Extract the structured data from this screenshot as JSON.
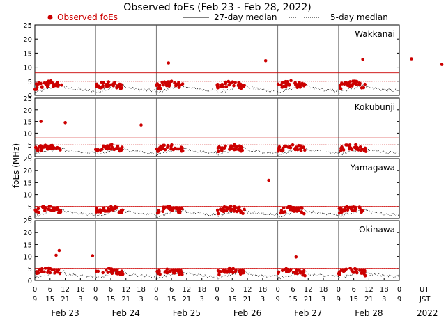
{
  "title": "Observed foEs (Feb 23 - Feb 28, 2022)",
  "legend": {
    "observed": "Observed foEs",
    "median27": "27-day median",
    "median5": "5-day median"
  },
  "colors": {
    "observed": "#cc0000",
    "median": "#000000",
    "threshold": "#cc0000"
  },
  "chart_data": {
    "type": "scatter",
    "title": "Observed foEs (Feb 23 - Feb 28, 2022)",
    "ylabel": "foEs (MHz)",
    "ylim": [
      0,
      25
    ],
    "yticks": [
      0,
      5,
      10,
      15,
      20,
      25
    ],
    "grid": false,
    "legend_position": "top",
    "x_tick_labels_ut": [
      "0",
      "6",
      "12",
      "18",
      "0",
      "6",
      "12",
      "18",
      "0",
      "6",
      "12",
      "18",
      "0",
      "6",
      "12",
      "18",
      "0",
      "6",
      "12",
      "18",
      "0",
      "6",
      "12",
      "18",
      "0"
    ],
    "x_tick_labels_jst": [
      "9",
      "15",
      "21",
      "3",
      "9",
      "15",
      "21",
      "3",
      "9",
      "15",
      "21",
      "3",
      "9",
      "15",
      "21",
      "3",
      "9",
      "15",
      "21",
      "3",
      "9",
      "15",
      "21",
      "3",
      "9"
    ],
    "ut_label": "UT",
    "jst_label": "JST",
    "days": [
      "Feb 23",
      "Feb 24",
      "Feb 25",
      "Feb 26",
      "Feb 27",
      "Feb 28"
    ],
    "year": "2022",
    "stations": [
      {
        "name": "Wakkanai",
        "threshold_27day": 8,
        "threshold_5day": 5,
        "outliers": [
          [
            2.2,
            11.5
          ],
          [
            3.8,
            12.3
          ],
          [
            5.4,
            12.8
          ],
          [
            6.2,
            13.0
          ],
          [
            6.7,
            11.0
          ]
        ]
      },
      {
        "name": "Kokubunji",
        "threshold_27day": 8,
        "threshold_5day": 5,
        "outliers": [
          [
            0.1,
            15.0
          ],
          [
            0.5,
            14.5
          ],
          [
            1.75,
            13.5
          ]
        ]
      },
      {
        "name": "Yamagawa",
        "threshold_27day": 5,
        "threshold_5day": 5,
        "outliers": [
          [
            3.85,
            16.0
          ]
        ]
      },
      {
        "name": "Okinawa",
        "threshold_27day": 5,
        "threshold_5day": 5,
        "outliers": [
          [
            0.4,
            12.5
          ],
          [
            0.35,
            10.5
          ],
          [
            0.95,
            10.3
          ],
          [
            4.3,
            9.8
          ]
        ]
      }
    ]
  }
}
